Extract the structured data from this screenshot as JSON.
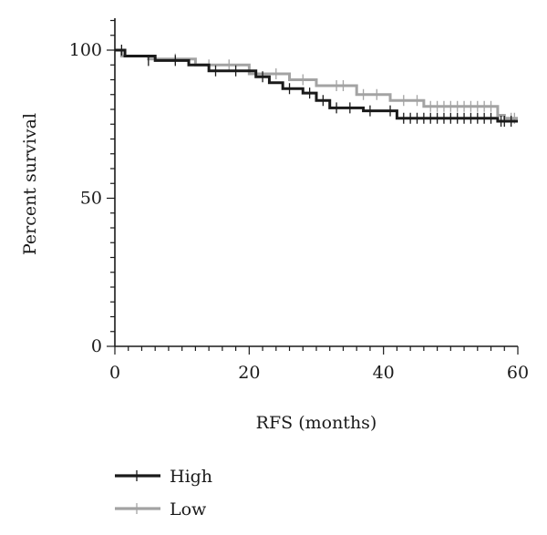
{
  "chart_data": {
    "type": "line",
    "title": "",
    "xlabel": "RFS (months)",
    "ylabel": "Percent survival",
    "xlim": [
      0,
      60
    ],
    "ylim": [
      0,
      100
    ],
    "x_ticks": [
      "0",
      "20",
      "40",
      "60"
    ],
    "y_ticks": [
      "0",
      "50",
      "100"
    ],
    "x_minor_step": 2,
    "y_minor_step": 5,
    "grid": false,
    "legend_position": "bottom-left",
    "series": [
      {
        "name": "High",
        "color": "#1a1a1a",
        "steps": [
          [
            0,
            100
          ],
          [
            1.5,
            98
          ],
          [
            6,
            96.5
          ],
          [
            11,
            95
          ],
          [
            14,
            93
          ],
          [
            20,
            93
          ],
          [
            21,
            91
          ],
          [
            23,
            89
          ],
          [
            25,
            87
          ],
          [
            28,
            85.5
          ],
          [
            30,
            83
          ],
          [
            32,
            80.5
          ],
          [
            37,
            79.5
          ],
          [
            42,
            77
          ],
          [
            57,
            76
          ],
          [
            60,
            76
          ]
        ],
        "censored": [
          [
            1,
            100
          ],
          [
            5,
            96.5
          ],
          [
            9,
            96.5
          ],
          [
            15,
            93
          ],
          [
            18,
            93
          ],
          [
            22,
            91
          ],
          [
            26,
            87
          ],
          [
            29,
            85.5
          ],
          [
            31,
            83
          ],
          [
            33,
            80.5
          ],
          [
            35,
            80.5
          ],
          [
            38,
            79.5
          ],
          [
            41,
            79.5
          ],
          [
            43,
            77
          ],
          [
            44,
            77
          ],
          [
            45,
            77
          ],
          [
            46,
            77
          ],
          [
            47,
            77
          ],
          [
            48,
            77
          ],
          [
            49,
            77
          ],
          [
            50,
            77
          ],
          [
            51,
            77
          ],
          [
            52,
            77
          ],
          [
            53,
            77
          ],
          [
            54,
            77
          ],
          [
            55,
            77
          ],
          [
            56,
            77
          ],
          [
            57.5,
            76
          ],
          [
            58,
            76
          ],
          [
            59,
            76
          ]
        ]
      },
      {
        "name": "Low",
        "color": "#a3a3a3",
        "steps": [
          [
            0,
            100
          ],
          [
            1,
            98
          ],
          [
            5,
            97
          ],
          [
            12,
            95
          ],
          [
            20,
            92
          ],
          [
            26,
            90
          ],
          [
            30,
            88
          ],
          [
            36,
            85
          ],
          [
            41,
            83
          ],
          [
            46,
            81
          ],
          [
            57,
            78
          ],
          [
            58,
            77
          ],
          [
            60,
            77
          ]
        ],
        "censored": [
          [
            9,
            97
          ],
          [
            14,
            95
          ],
          [
            17,
            95
          ],
          [
            24,
            92
          ],
          [
            28,
            90
          ],
          [
            33,
            88
          ],
          [
            34,
            88
          ],
          [
            37,
            85
          ],
          [
            39,
            85
          ],
          [
            43,
            83
          ],
          [
            45,
            83
          ],
          [
            47,
            81
          ],
          [
            48,
            81
          ],
          [
            49,
            81
          ],
          [
            50,
            81
          ],
          [
            51,
            81
          ],
          [
            52,
            81
          ],
          [
            53,
            81
          ],
          [
            54,
            81
          ],
          [
            55,
            81
          ],
          [
            56,
            81
          ],
          [
            59,
            77
          ],
          [
            59.5,
            77
          ]
        ]
      }
    ]
  }
}
